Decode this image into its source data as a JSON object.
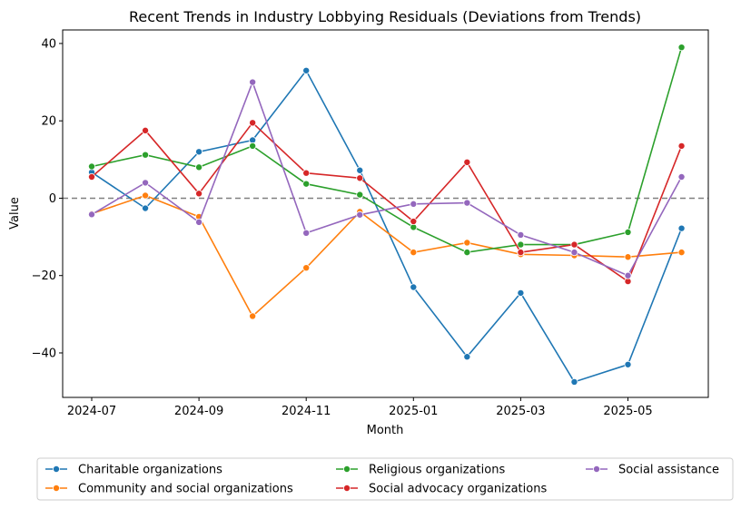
{
  "chart_data": {
    "type": "line",
    "title": "Recent Trends in Industry Lobbying Residuals (Deviations from Trends)",
    "xlabel": "Month",
    "ylabel": "Value",
    "ylim": [
      -51.5,
      43.5
    ],
    "yticks": [
      -40,
      -20,
      0,
      20,
      40
    ],
    "ytick_labels": [
      "−40",
      "−20",
      "0",
      "20",
      "40"
    ],
    "categories": [
      "2024-07",
      "2024-08",
      "2024-09",
      "2024-10",
      "2024-11",
      "2024-12",
      "2025-01",
      "2025-02",
      "2025-03",
      "2025-04",
      "2025-05",
      "2025-06"
    ],
    "xticks": [
      "2024-07",
      "2024-09",
      "2024-11",
      "2025-01",
      "2025-03",
      "2025-05"
    ],
    "reference_line": 0,
    "grid": false,
    "legend_position": "bottom",
    "series": [
      {
        "name": "Charitable organizations",
        "color": "#1f77b4",
        "values": [
          6.7,
          -2.6,
          12.0,
          15.0,
          33.0,
          7.2,
          -23.0,
          -41.0,
          -24.5,
          -47.5,
          -43.0,
          -7.8
        ]
      },
      {
        "name": "Community and social organizations",
        "color": "#ff7f0e",
        "values": [
          -4.0,
          0.7,
          -4.8,
          -30.5,
          -18.0,
          -3.5,
          -14.0,
          -11.5,
          -14.5,
          -14.8,
          -15.2,
          -14.0
        ]
      },
      {
        "name": "Religious organizations",
        "color": "#2ca02c",
        "values": [
          8.2,
          11.2,
          8.0,
          13.5,
          3.7,
          0.9,
          -7.5,
          -14.0,
          -12.0,
          -12.0,
          -8.8,
          39.0
        ]
      },
      {
        "name": "Social advocacy organizations",
        "color": "#d62728",
        "values": [
          5.5,
          17.5,
          1.2,
          19.5,
          6.5,
          5.2,
          -6.0,
          9.3,
          -14.0,
          -12.0,
          -21.5,
          13.5
        ]
      },
      {
        "name": "Social assistance",
        "color": "#9467bd",
        "values": [
          -4.2,
          4.0,
          -6.2,
          30.0,
          -9.0,
          -4.3,
          -1.5,
          -1.2,
          -9.5,
          -14.0,
          -20.0,
          5.5
        ]
      }
    ]
  }
}
